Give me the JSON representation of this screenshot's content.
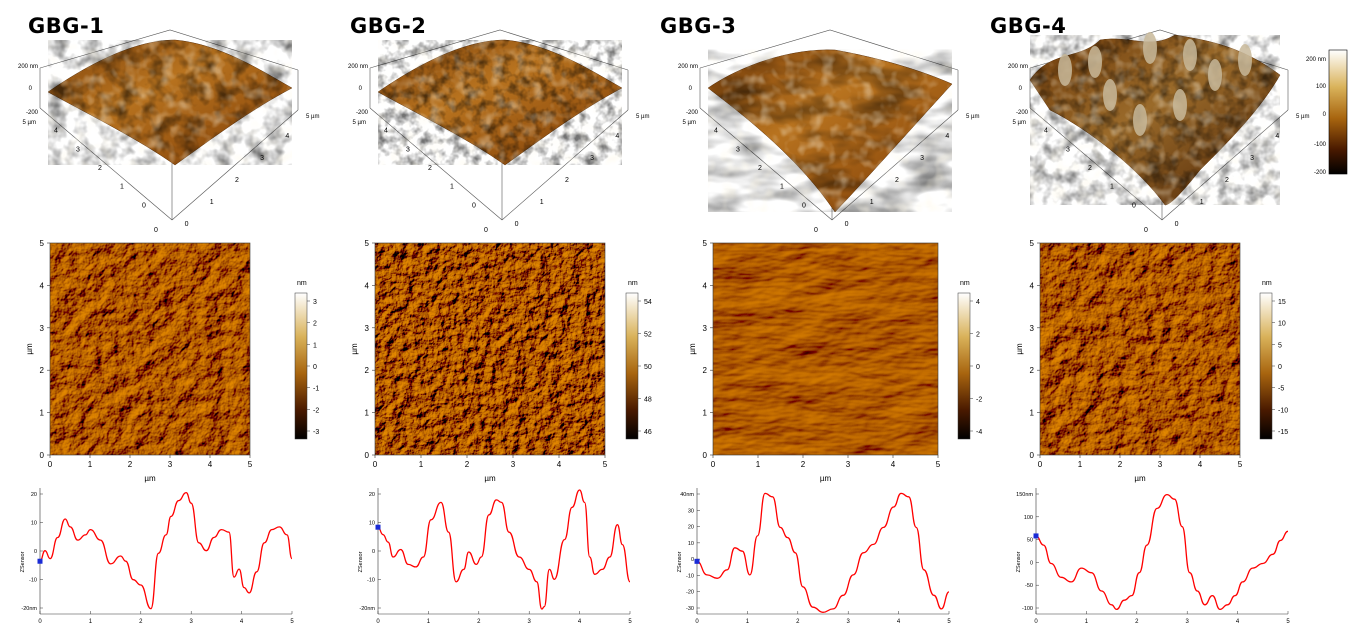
{
  "figure": {
    "colorbar_3d": {
      "ticks": [
        "200 nm",
        "100",
        "0",
        "-100",
        "-200"
      ]
    },
    "panels": [
      {
        "id": "GBG-1",
        "title": "GBG-1",
        "surface_3d": {
          "z_top": "200 nm",
          "z_mid": "0",
          "z_bot": "-200",
          "y_corner": "5 µm",
          "x_corner": "5 µm",
          "y_ticks": [
            "4",
            "3",
            "2",
            "1",
            "0"
          ],
          "x_ticks": [
            "0",
            "1",
            "2",
            "3",
            "4"
          ]
        },
        "height_map": {
          "x_ticks": [
            "0",
            "1",
            "2",
            "3",
            "4",
            "5"
          ],
          "y_ticks": [
            "0",
            "1",
            "2",
            "3",
            "4",
            "5"
          ],
          "xlabel": "µm",
          "ylabel": "µm",
          "colorbar_unit": "nm",
          "colorbar_ticks": [
            "3",
            "2",
            "1",
            "0",
            "-1",
            "-2",
            "-3"
          ]
        },
        "profile": {
          "ylabel": "ZSensor",
          "y_ticks": [
            "20",
            "10",
            "0",
            "-10",
            "-20nm"
          ],
          "x_ticks": [
            "0",
            "1",
            "2",
            "3",
            "4",
            "5"
          ]
        }
      },
      {
        "id": "GBG-2",
        "title": "GBG-2",
        "surface_3d": {
          "z_top": "200 nm",
          "z_mid": "0",
          "z_bot": "-200",
          "y_corner": "5 µm",
          "x_corner": "5 µm",
          "y_ticks": [
            "4",
            "3",
            "2",
            "1",
            "0"
          ],
          "x_ticks": [
            "0",
            "1",
            "2",
            "3",
            "4"
          ]
        },
        "height_map": {
          "x_ticks": [
            "0",
            "1",
            "2",
            "3",
            "4",
            "5"
          ],
          "y_ticks": [
            "0",
            "1",
            "2",
            "3",
            "4",
            "5"
          ],
          "xlabel": "µm",
          "ylabel": "µm",
          "colorbar_unit": "nm",
          "colorbar_ticks": [
            "54",
            "52",
            "50",
            "48",
            "46"
          ]
        },
        "profile": {
          "ylabel": "ZSensor",
          "y_ticks": [
            "20",
            "10",
            "0",
            "-10",
            "-20nm"
          ],
          "x_ticks": [
            "0",
            "1",
            "2",
            "3",
            "4",
            "5"
          ]
        }
      },
      {
        "id": "GBG-3",
        "title": "GBG-3",
        "surface_3d": {
          "z_top": "200 nm",
          "z_mid": "0",
          "z_bot": "-200",
          "y_corner": "5 µm",
          "x_corner": "5 µm",
          "y_ticks": [
            "4",
            "3",
            "2",
            "1",
            "0"
          ],
          "x_ticks": [
            "0",
            "1",
            "2",
            "3",
            "4"
          ]
        },
        "height_map": {
          "x_ticks": [
            "0",
            "1",
            "2",
            "3",
            "4",
            "5"
          ],
          "y_ticks": [
            "0",
            "1",
            "2",
            "3",
            "4",
            "5"
          ],
          "xlabel": "µm",
          "ylabel": "µm",
          "colorbar_unit": "nm",
          "colorbar_ticks": [
            "4",
            "2",
            "0",
            "-2",
            "-4"
          ]
        },
        "profile": {
          "ylabel": "ZSensor",
          "y_ticks": [
            "40nm",
            "30",
            "20",
            "10",
            "0",
            "-10",
            "-20",
            "-30"
          ],
          "x_ticks": [
            "0",
            "1",
            "2",
            "3",
            "4",
            "5"
          ]
        }
      },
      {
        "id": "GBG-4",
        "title": "GBG-4",
        "surface_3d": {
          "z_top": "200 nm",
          "z_mid": "0",
          "z_bot": "-200",
          "y_corner": "5 µm",
          "x_corner": "5 µm",
          "y_ticks": [
            "4",
            "3",
            "2",
            "1",
            "0"
          ],
          "x_ticks": [
            "0",
            "1",
            "2",
            "3",
            "4"
          ]
        },
        "height_map": {
          "x_ticks": [
            "0",
            "1",
            "2",
            "3",
            "4",
            "5"
          ],
          "y_ticks": [
            "0",
            "1",
            "2",
            "3",
            "4",
            "5"
          ],
          "xlabel": "µm",
          "ylabel": "µm",
          "colorbar_unit": "nm",
          "colorbar_ticks": [
            "15",
            "10",
            "5",
            "0",
            "-5",
            "-10",
            "-15"
          ]
        },
        "profile": {
          "ylabel": "ZSensor",
          "y_ticks": [
            "150nm",
            "100",
            "50",
            "0",
            "-50",
            "-100"
          ],
          "x_ticks": [
            "0",
            "1",
            "2",
            "3",
            "4",
            "5"
          ]
        }
      }
    ]
  },
  "chart_data": [
    {
      "type": "line",
      "title": "GBG-1",
      "ylabel": "ZSensor",
      "xlim": [
        0,
        5
      ],
      "ylim": [
        -25,
        22
      ],
      "series": [
        {
          "color": "#ff0000",
          "x": [
            0,
            0.1,
            0.2,
            0.35,
            0.5,
            0.6,
            0.75,
            0.9,
            1.0,
            1.2,
            1.4,
            1.6,
            1.7,
            1.85,
            2.0,
            2.2,
            2.35,
            2.5,
            2.6,
            2.75,
            2.9,
            3.0,
            3.15,
            3.3,
            3.45,
            3.6,
            3.75,
            3.85,
            3.95,
            4.05,
            4.15,
            4.3,
            4.45,
            4.6,
            4.75,
            4.9,
            5.0
          ],
          "y": [
            -5,
            -1,
            -4,
            4,
            11,
            8,
            3,
            5,
            7,
            3,
            -6,
            -3,
            -5,
            -12,
            -14,
            -23,
            -2,
            5,
            12,
            18,
            21,
            17,
            2,
            -1,
            4,
            7,
            6,
            -11,
            -8,
            -15,
            -17,
            -9,
            2,
            7,
            8,
            5,
            -4
          ]
        }
      ]
    },
    {
      "type": "line",
      "title": "GBG-2",
      "ylabel": "ZSensor",
      "xlim": [
        0,
        5
      ],
      "ylim": [
        -28,
        22
      ],
      "series": [
        {
          "color": "#ff0000",
          "x": [
            0,
            0.1,
            0.2,
            0.3,
            0.45,
            0.6,
            0.75,
            0.9,
            1.05,
            1.25,
            1.4,
            1.55,
            1.7,
            1.8,
            1.95,
            2.05,
            2.2,
            2.35,
            2.45,
            2.6,
            2.8,
            3.0,
            3.15,
            3.25,
            3.3,
            3.4,
            3.5,
            3.7,
            3.85,
            4.0,
            4.1,
            4.2,
            4.3,
            4.45,
            4.6,
            4.75,
            4.85,
            5.0
          ],
          "y": [
            7,
            4,
            1,
            -5,
            -2,
            -8,
            -9,
            -5,
            10,
            17,
            5,
            -15,
            -10,
            -3,
            -8,
            -5,
            12,
            18,
            17,
            5,
            -5,
            -10,
            -15,
            -26,
            -25,
            -10,
            -14,
            2,
            15,
            22,
            17,
            -5,
            -12,
            -10,
            -5,
            8,
            0,
            -15
          ]
        }
      ]
    },
    {
      "type": "line",
      "title": "GBG-3",
      "ylabel": "ZSensor",
      "xlim": [
        0,
        5
      ],
      "ylim": [
        -31,
        42
      ],
      "series": [
        {
          "color": "#ff0000",
          "x": [
            0,
            0.2,
            0.4,
            0.6,
            0.75,
            0.9,
            1.05,
            1.2,
            1.35,
            1.5,
            1.65,
            1.8,
            1.95,
            2.1,
            2.3,
            2.5,
            2.7,
            2.9,
            3.1,
            3.3,
            3.5,
            3.7,
            3.9,
            4.05,
            4.2,
            4.35,
            4.5,
            4.7,
            4.85,
            5.0
          ],
          "y": [
            0,
            -8,
            -10,
            -5,
            8,
            6,
            -8,
            15,
            40,
            38,
            20,
            14,
            5,
            -15,
            -27,
            -30,
            -28,
            -20,
            -8,
            5,
            10,
            20,
            32,
            40,
            38,
            20,
            -5,
            -20,
            -28,
            -18
          ]
        }
      ]
    },
    {
      "type": "line",
      "title": "GBG-4",
      "ylabel": "ZSensor",
      "xlim": [
        0,
        5
      ],
      "ylim": [
        -110,
        160
      ],
      "series": [
        {
          "color": "#ff0000",
          "x": [
            0,
            0.15,
            0.3,
            0.5,
            0.7,
            0.9,
            1.1,
            1.3,
            1.5,
            1.6,
            1.75,
            1.9,
            2.05,
            2.2,
            2.4,
            2.6,
            2.75,
            2.9,
            3.05,
            3.2,
            3.35,
            3.5,
            3.65,
            3.8,
            3.95,
            4.1,
            4.3,
            4.5,
            4.7,
            4.85,
            5.0
          ],
          "y": [
            60,
            40,
            0,
            -30,
            -40,
            -10,
            -20,
            -60,
            -90,
            -100,
            -80,
            -70,
            -20,
            40,
            120,
            150,
            140,
            80,
            -20,
            -60,
            -90,
            -70,
            -100,
            -90,
            -70,
            -40,
            -10,
            0,
            20,
            50,
            70
          ]
        }
      ]
    }
  ]
}
